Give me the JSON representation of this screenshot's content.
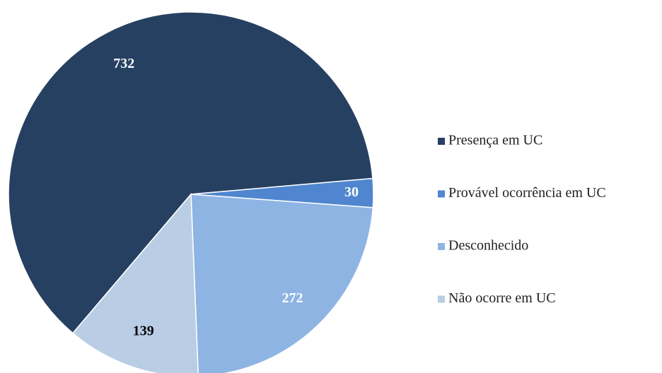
{
  "chart_data": {
    "type": "pie",
    "categories": [
      "Presença em UC",
      "Provável ocorrência em UC",
      "Desconhecido",
      "Não ocorre em UC"
    ],
    "values": [
      732,
      30,
      272,
      139
    ],
    "colors": [
      "#264061",
      "#4f86cf",
      "#8eb4e3",
      "#b9cde5"
    ],
    "label_colors": [
      "#ffffff",
      "#ffffff",
      "#ffffff",
      "#000000"
    ],
    "legend": "right"
  }
}
